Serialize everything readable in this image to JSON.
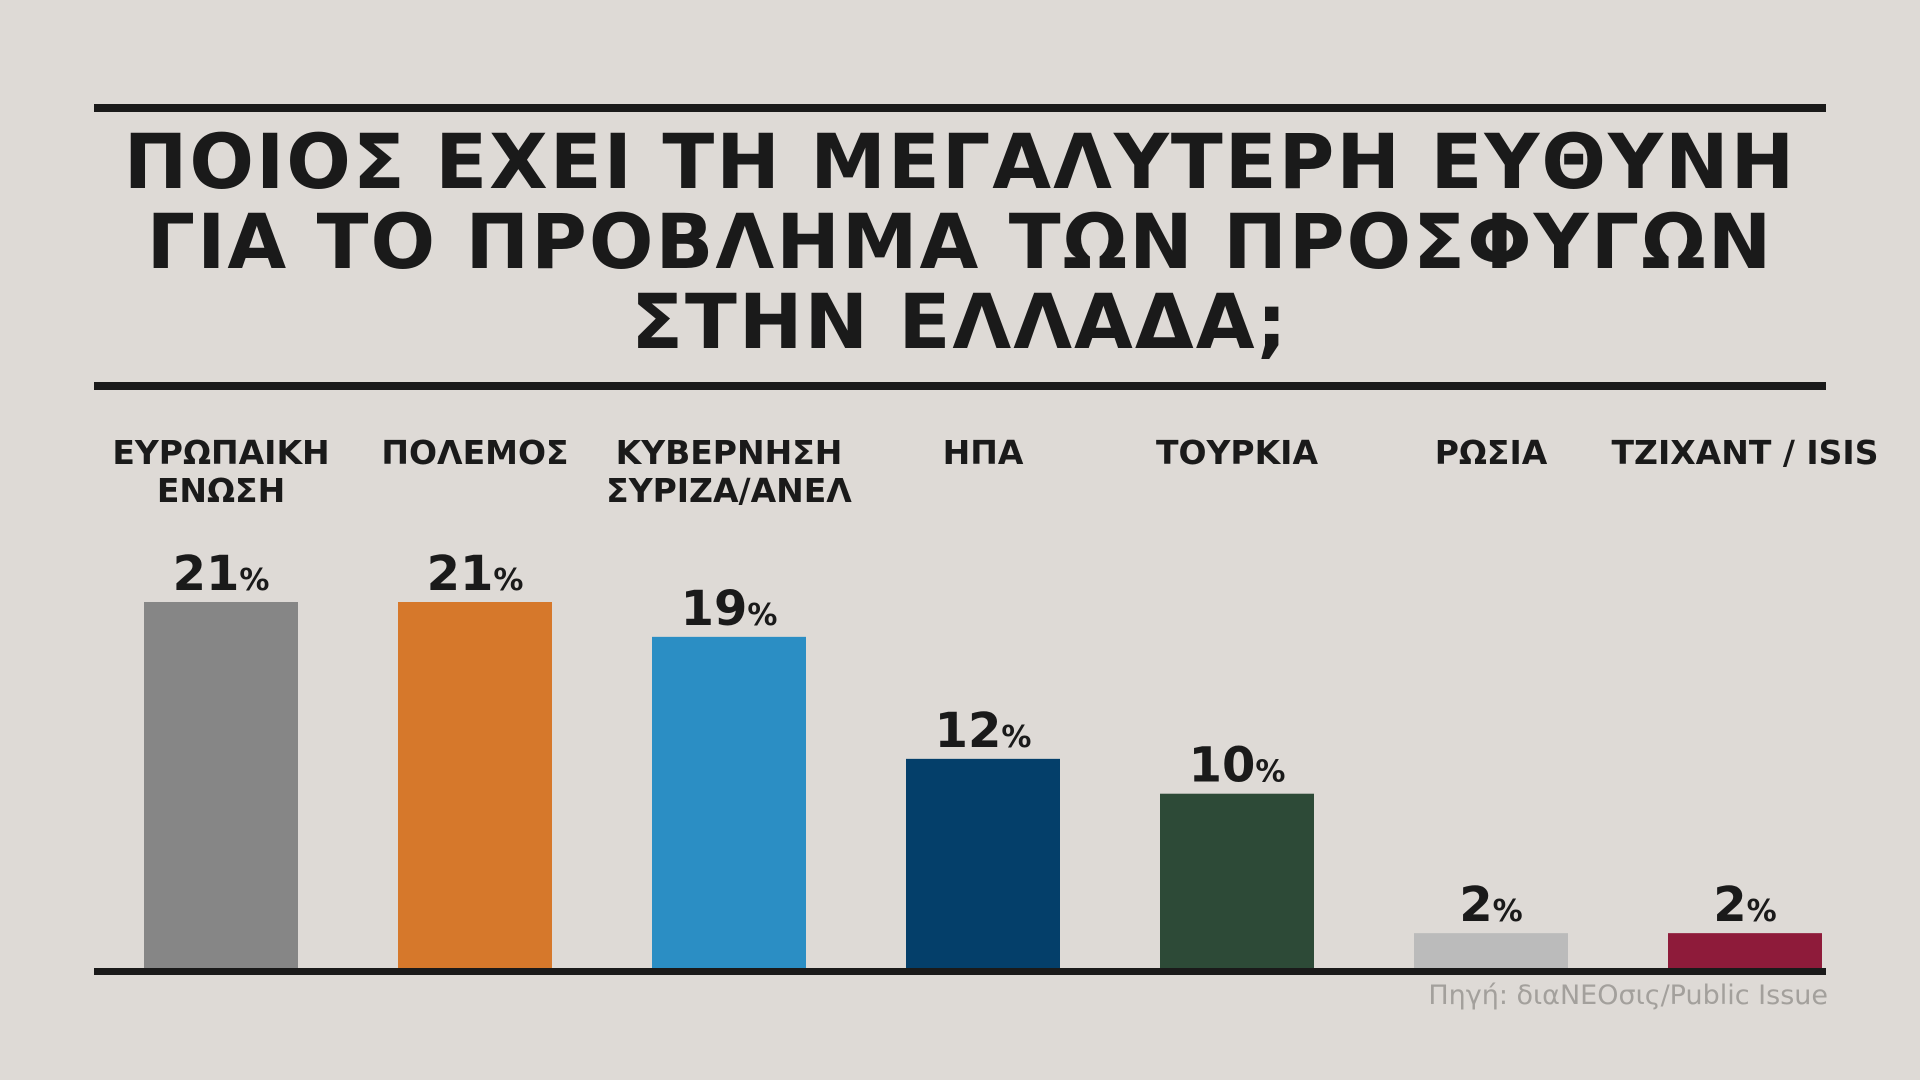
{
  "title_lines": [
    "ΠΟΙΟΣ ΕΧΕΙ ΤΗ ΜΕΓΑΛΥΤΕΡΗ ΕΥΘΥΝΗ",
    "ΓΙΑ ΤΟ ΠΡΟΒΛΗΜΑ ΤΩΝ ΠΡΟΣΦΥΓΩΝ",
    "ΣΤΗΝ ΕΛΛΑΔΑ;"
  ],
  "source": "Πηγή: διαΝΕΟσις/Public Issue",
  "chart_data": {
    "type": "bar",
    "title": "ΠΟΙΟΣ ΕΧΕΙ ΤΗ ΜΕΓΑΛΥΤΕΡΗ ΕΥΘΥΝΗ ΓΙΑ ΤΟ ΠΡΟΒΛΗΜΑ ΤΩΝ ΠΡΟΣΦΥΓΩΝ ΣΤΗΝ ΕΛΛΑΔΑ;",
    "categories": [
      [
        "ΕΥΡΩΠΑΙΚΗ",
        "ΕΝΩΣΗ"
      ],
      [
        "ΠΟΛΕΜΟΣ"
      ],
      [
        "ΚΥΒΕΡΝΗΣΗ",
        "ΣΥΡΙΖΑ/ΑΝΕΛ"
      ],
      [
        "ΗΠΑ"
      ],
      [
        "ΤΟΥΡΚΙΑ"
      ],
      [
        "ΡΩΣΙΑ"
      ],
      [
        "ΤΖΙΧΑΝΤ / ISIS"
      ]
    ],
    "values": [
      21,
      21,
      19,
      12,
      10,
      2,
      2
    ],
    "value_suffix": "%",
    "colors": [
      "#868686",
      "#d6782b",
      "#2b8ec4",
      "#043f6a",
      "#2d4a37",
      "#bbbbbb",
      "#8e1b3a"
    ],
    "ylim": [
      0,
      21
    ],
    "grid": false,
    "legend": "none"
  }
}
